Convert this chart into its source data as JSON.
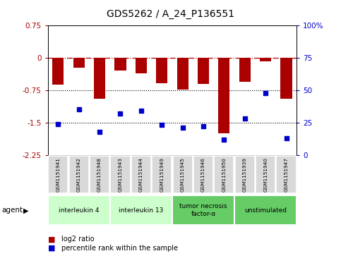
{
  "title": "GDS5262 / A_24_P136551",
  "samples": [
    "GSM1151941",
    "GSM1151942",
    "GSM1151948",
    "GSM1151943",
    "GSM1151944",
    "GSM1151949",
    "GSM1151945",
    "GSM1151946",
    "GSM1151950",
    "GSM1151939",
    "GSM1151940",
    "GSM1151947"
  ],
  "log2_ratio": [
    -0.62,
    -0.22,
    -0.95,
    -0.3,
    -0.35,
    -0.58,
    -0.73,
    -0.6,
    -1.75,
    -0.55,
    -0.08,
    -0.95
  ],
  "percentile": [
    24,
    35,
    18,
    32,
    34,
    23,
    21,
    22,
    12,
    28,
    48,
    13
  ],
  "ylim_left": [
    -2.25,
    0.75
  ],
  "ylim_right": [
    0,
    100
  ],
  "yticks_left": [
    0.75,
    0,
    -0.75,
    -1.5,
    -2.25
  ],
  "yticks_right": [
    100,
    75,
    50,
    25,
    0
  ],
  "bar_color": "#aa0000",
  "dot_color": "#0000cc",
  "agent_groups": [
    {
      "label": "interleukin 4",
      "start": 0,
      "end": 3,
      "color": "#ccffcc"
    },
    {
      "label": "interleukin 13",
      "start": 3,
      "end": 6,
      "color": "#ccffcc"
    },
    {
      "label": "tumor necrosis\nfactor-α",
      "start": 6,
      "end": 9,
      "color": "#66cc66"
    },
    {
      "label": "unstimulated",
      "start": 9,
      "end": 12,
      "color": "#66cc66"
    }
  ],
  "legend_items": [
    {
      "label": "log2 ratio",
      "color": "#aa0000"
    },
    {
      "label": "percentile rank within the sample",
      "color": "#0000cc"
    }
  ],
  "agent_label": "agent",
  "background_color": "#ffffff",
  "title_fontsize": 10,
  "tick_fontsize": 7.5,
  "label_fontsize": 6,
  "bar_width": 0.55
}
